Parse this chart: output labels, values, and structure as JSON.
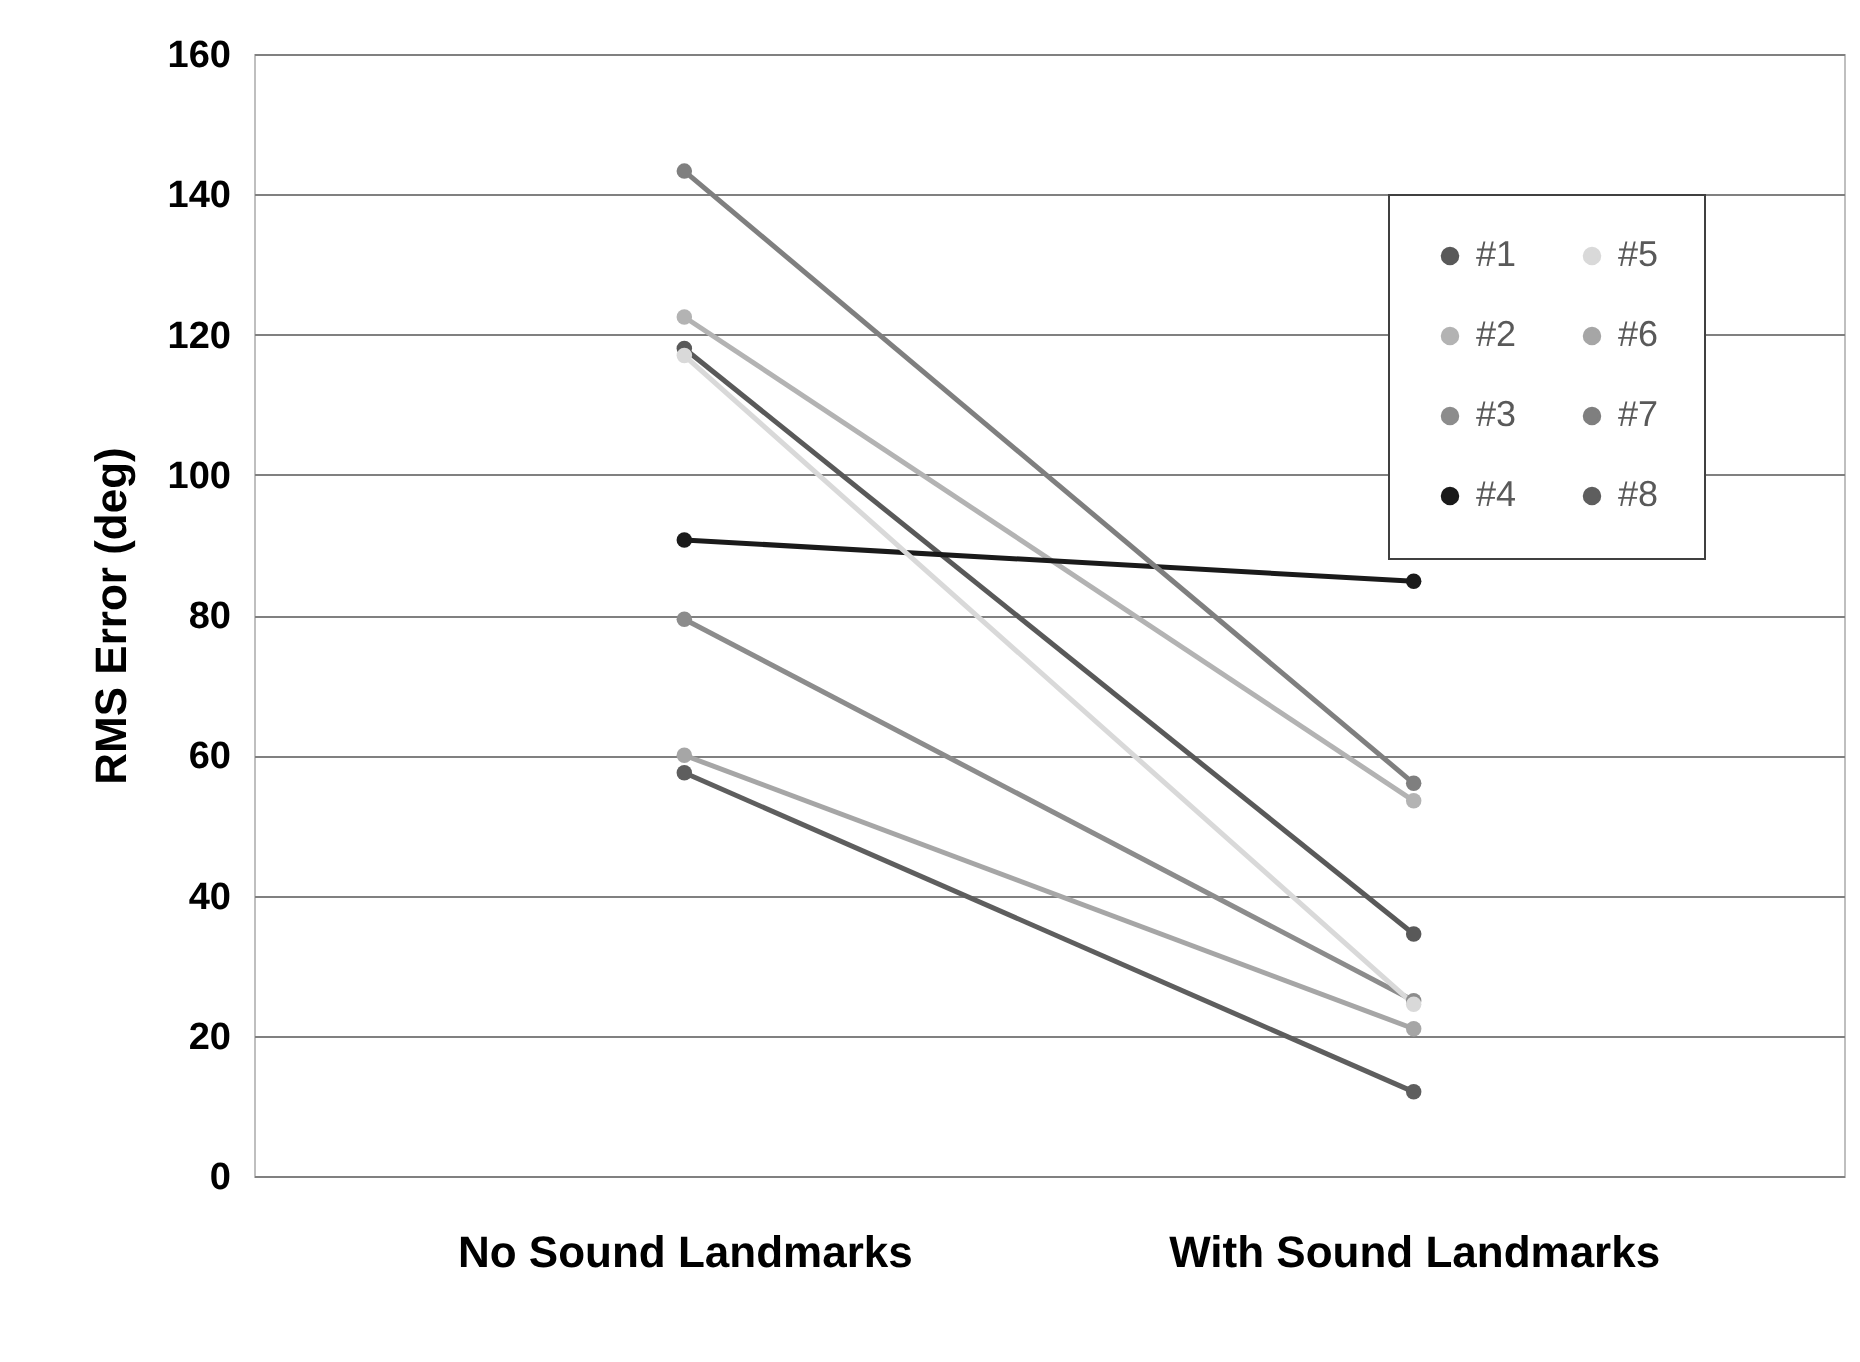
{
  "chart_data": {
    "type": "line",
    "ylabel": "RMS Error (deg)",
    "categories": [
      "No Sound Landmarks",
      "With Sound Landmarks"
    ],
    "series": [
      {
        "name": "#1",
        "color": "#595959",
        "values": [
          118,
          34.5
        ]
      },
      {
        "name": "#2",
        "color": "#b3b3b3",
        "values": [
          122.5,
          53.5
        ]
      },
      {
        "name": "#3",
        "color": "#8c8c8c",
        "values": [
          79.4,
          25
        ]
      },
      {
        "name": "#4",
        "color": "#1a1a1a",
        "values": [
          90.7,
          84.8
        ]
      },
      {
        "name": "#5",
        "color": "#d9d9d9",
        "values": [
          117,
          24.5
        ]
      },
      {
        "name": "#6",
        "color": "#a6a6a6",
        "values": [
          60,
          21
        ]
      },
      {
        "name": "#7",
        "color": "#7f7f7f",
        "values": [
          143.3,
          56
        ]
      },
      {
        "name": "#8",
        "color": "#5e5e5e",
        "values": [
          57.5,
          12
        ]
      }
    ],
    "ylim": [
      0,
      160
    ],
    "yticks": [
      0,
      20,
      40,
      60,
      80,
      100,
      120,
      140,
      160
    ],
    "grid": "y",
    "legend": "top right",
    "marker": "circle",
    "line_style": "solid"
  }
}
